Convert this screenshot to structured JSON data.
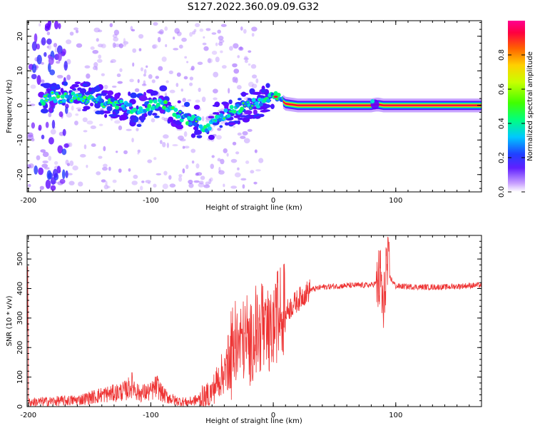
{
  "title": "S127.2022.360.09.09.G32",
  "chart_data": [
    {
      "type": "heatmap",
      "xlabel": "Height of straight line (km)",
      "ylabel": "Frequency (Hz)",
      "xlim": [
        -201,
        170
      ],
      "ylim": [
        -25,
        24.5
      ],
      "xticks": [
        -200,
        -100,
        0,
        100
      ],
      "yticks": [
        -20,
        -10,
        0,
        10,
        20
      ],
      "colorbar": {
        "label": "Normalized spectral amplitude",
        "range": [
          0,
          1
        ],
        "ticks": [
          0.0,
          0.2,
          0.4,
          0.6,
          0.8
        ]
      },
      "ridge": {
        "description": "dominant frequency track (Hz) vs height (km)",
        "points": [
          [
            -190,
            1.5
          ],
          [
            -180,
            2.5
          ],
          [
            -170,
            2.0
          ],
          [
            -160,
            2.5
          ],
          [
            -150,
            1.5
          ],
          [
            -140,
            1.0
          ],
          [
            -130,
            0.5
          ],
          [
            -120,
            -0.5
          ],
          [
            -110,
            -1.5
          ],
          [
            -100,
            0.0
          ],
          [
            -90,
            0.5
          ],
          [
            -80,
            -2.0
          ],
          [
            -70,
            -4.0
          ],
          [
            -60,
            -5.0
          ],
          [
            -55,
            -7.0
          ],
          [
            -50,
            -4.5
          ],
          [
            -40,
            -2.5
          ],
          [
            -30,
            -1.0
          ],
          [
            -20,
            0.0
          ],
          [
            -10,
            1.0
          ],
          [
            0,
            2.5
          ],
          [
            5,
            2.0
          ],
          [
            10,
            0.5
          ],
          [
            20,
            0.0
          ],
          [
            80,
            0.0
          ],
          [
            85,
            0.3
          ],
          [
            90,
            0.0
          ],
          [
            170,
            0.0
          ]
        ]
      }
    },
    {
      "type": "line",
      "xlabel": "Height of straight line (km)",
      "ylabel": "SNR (10 * v/v)",
      "xlim": [
        -201,
        170
      ],
      "ylim": [
        0,
        580
      ],
      "xticks": [
        -200,
        -100,
        0,
        100
      ],
      "yticks": [
        0,
        100,
        200,
        300,
        400,
        500
      ],
      "line_color": "#ee3333",
      "series": [
        {
          "x": [
            -200,
            -180,
            -160,
            -150,
            -140,
            -130,
            -120,
            -115,
            -110,
            -100,
            -95,
            -90,
            -80,
            -70,
            -60,
            -50,
            -45,
            -40,
            -35,
            -30,
            -25,
            -20,
            -15,
            -10,
            -5,
            0,
            5,
            10,
            15,
            20,
            25,
            30,
            40,
            60,
            80,
            85,
            88,
            90,
            92,
            95,
            100,
            120,
            140,
            160,
            170
          ],
          "values": [
            15,
            18,
            22,
            30,
            40,
            45,
            55,
            75,
            45,
            50,
            70,
            40,
            20,
            15,
            25,
            50,
            90,
            120,
            150,
            200,
            230,
            200,
            240,
            250,
            220,
            270,
            300,
            320,
            340,
            360,
            380,
            395,
            405,
            410,
            412,
            420,
            430,
            300,
            480,
            440,
            408,
            405,
            405,
            410,
            412
          ]
        }
      ]
    }
  ]
}
